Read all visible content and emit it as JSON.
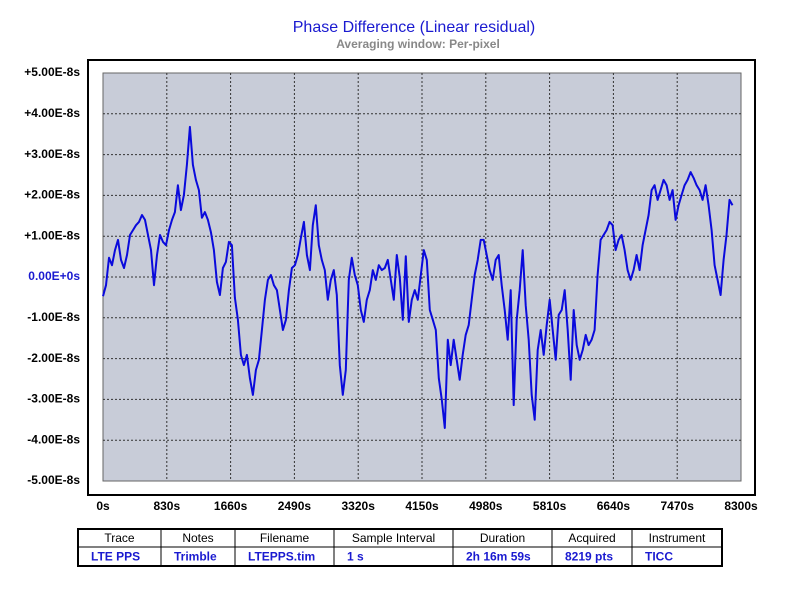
{
  "chart_data": {
    "type": "line",
    "title": "Phase Difference (Linear residual)",
    "subtitle": "Averaging window: Per-pixel",
    "color": "#0a0adc",
    "grid": true,
    "xlim": [
      0,
      8300
    ],
    "ylim": [
      -5e-08,
      5e-08
    ],
    "xticks": [
      {
        "value": 0,
        "label": "0s"
      },
      {
        "value": 830,
        "label": "830s"
      },
      {
        "value": 1660,
        "label": "1660s"
      },
      {
        "value": 2490,
        "label": "2490s"
      },
      {
        "value": 3320,
        "label": "3320s"
      },
      {
        "value": 4150,
        "label": "4150s"
      },
      {
        "value": 4980,
        "label": "4980s"
      },
      {
        "value": 5810,
        "label": "5810s"
      },
      {
        "value": 6640,
        "label": "6640s"
      },
      {
        "value": 7470,
        "label": "7470s"
      },
      {
        "value": 8300,
        "label": "8300s"
      }
    ],
    "yticks": [
      {
        "value": 5e-08,
        "label": "+5.00E-8s"
      },
      {
        "value": 4e-08,
        "label": "+4.00E-8s"
      },
      {
        "value": 3e-08,
        "label": "+3.00E-8s"
      },
      {
        "value": 2e-08,
        "label": "+2.00E-8s"
      },
      {
        "value": 1e-08,
        "label": "+1.00E-8s"
      },
      {
        "value": 0,
        "label": "0.00E+0s"
      },
      {
        "value": -1e-08,
        "label": "-1.00E-8s"
      },
      {
        "value": -2e-08,
        "label": "-2.00E-8s"
      },
      {
        "value": -3e-08,
        "label": "-3.00E-8s"
      },
      {
        "value": -4e-08,
        "label": "-4.00E-8s"
      },
      {
        "value": -5e-08,
        "label": "-5.00E-8s"
      }
    ],
    "x": [
      0,
      39,
      78,
      117,
      156,
      195,
      234,
      273,
      312,
      351,
      390,
      429,
      468,
      507,
      546,
      585,
      624,
      663,
      702,
      741,
      780,
      819,
      858,
      897,
      936,
      975,
      1014,
      1053,
      1092,
      1131,
      1170,
      1209,
      1248,
      1287,
      1326,
      1365,
      1404,
      1443,
      1482,
      1521,
      1560,
      1599,
      1638,
      1677,
      1716,
      1755,
      1794,
      1833,
      1872,
      1911,
      1950,
      1989,
      2028,
      2067,
      2106,
      2145,
      2184,
      2223,
      2262,
      2301,
      2340,
      2379,
      2418,
      2457,
      2496,
      2535,
      2574,
      2613,
      2652,
      2691,
      2730,
      2769,
      2808,
      2847,
      2886,
      2925,
      2964,
      3003,
      3042,
      3081,
      3120,
      3159,
      3198,
      3237,
      3276,
      3315,
      3354,
      3393,
      3432,
      3471,
      3510,
      3549,
      3588,
      3627,
      3666,
      3705,
      3744,
      3783,
      3822,
      3861,
      3900,
      3939,
      3978,
      4017,
      4056,
      4095,
      4134,
      4173,
      4212,
      4251,
      4290,
      4329,
      4368,
      4407,
      4446,
      4485,
      4524,
      4563,
      4602,
      4641,
      4680,
      4719,
      4758,
      4797,
      4836,
      4875,
      4914,
      4953,
      4992,
      5031,
      5070,
      5109,
      5148,
      5187,
      5226,
      5265,
      5304,
      5343,
      5382,
      5421,
      5460,
      5499,
      5538,
      5577,
      5616,
      5655,
      5694,
      5733,
      5772,
      5811,
      5850,
      5889,
      5928,
      5967,
      6006,
      6045,
      6084,
      6123,
      6162,
      6201,
      6240,
      6279,
      6318,
      6357,
      6396,
      6435,
      6474,
      6513,
      6552,
      6591,
      6630,
      6669,
      6708,
      6747,
      6786,
      6825,
      6864,
      6903,
      6942,
      6981,
      7020,
      7059,
      7098,
      7137,
      7176,
      7215,
      7254,
      7293,
      7332,
      7371,
      7410,
      7449,
      7488,
      7527,
      7566,
      7605,
      7644,
      7683,
      7722,
      7761,
      7800,
      7839,
      7878,
      7917,
      7956,
      7995,
      8034,
      8073,
      8112,
      8151,
      8190
    ],
    "values": [
      -4.7e-09,
      -2e-09,
      4.7e-09,
      2.9e-09,
      6.6e-09,
      9.1e-09,
      4.2e-09,
      2.2e-09,
      5.4e-09,
      1.03e-08,
      1.15e-08,
      1.27e-08,
      1.35e-08,
      1.52e-08,
      1.4e-08,
      1.03e-08,
      6.6e-09,
      -2e-09,
      5.4e-09,
      1.03e-08,
      8.6e-09,
      7.8e-09,
      1.15e-08,
      1.4e-08,
      1.59e-08,
      2.25e-08,
      1.64e-08,
      2.01e-08,
      2.75e-08,
      3.68e-08,
      2.75e-08,
      2.38e-08,
      2.13e-08,
      1.45e-08,
      1.59e-08,
      1.4e-08,
      1.1e-08,
      6.6e-09,
      -1.2e-09,
      -4.4e-09,
      2.2e-09,
      3.7e-09,
      8.6e-09,
      7.8e-09,
      -5.1e-09,
      -1.05e-08,
      -1.91e-08,
      -2.16e-08,
      -1.91e-08,
      -2.48e-08,
      -2.89e-08,
      -2.28e-08,
      -2.03e-08,
      -1.3e-08,
      -5.6e-09,
      -7e-10,
      5e-10,
      -2e-09,
      -3.2e-09,
      -8.1e-09,
      -1.3e-08,
      -1.05e-08,
      -3.2e-09,
      2.2e-09,
      2.9e-09,
      5.4e-09,
      9.6e-09,
      1.35e-08,
      5.4e-09,
      1.7e-09,
      1.27e-08,
      1.76e-08,
      7.8e-09,
      4.2e-09,
      1.7e-09,
      -5.6e-09,
      -7e-10,
      1.7e-09,
      -4.4e-09,
      -2.16e-08,
      -2.89e-08,
      -2.28e-08,
      -7e-10,
      4.7e-09,
      5e-10,
      -2e-09,
      -8.1e-09,
      -1.1e-08,
      -5.6e-09,
      -3.2e-09,
      1.7e-09,
      -7e-10,
      2.9e-09,
      1.7e-09,
      2.2e-09,
      4.2e-09,
      -7e-10,
      -5.6e-09,
      5.4e-09,
      -2e-10,
      -1.05e-08,
      5.1e-09,
      -1.1e-08,
      -5.6e-09,
      -3.2e-09,
      -5.6e-09,
      5e-10,
      6.6e-09,
      4.2e-09,
      -8.1e-09,
      -1.05e-08,
      -1.3e-08,
      -2.48e-08,
      -3.01e-08,
      -3.7e-08,
      -1.54e-08,
      -2.16e-08,
      -1.54e-08,
      -2.03e-08,
      -2.52e-08,
      -1.91e-08,
      -1.42e-08,
      -1.18e-08,
      -5.6e-09,
      5e-10,
      4.2e-09,
      9.1e-09,
      9.1e-09,
      5.4e-09,
      1.7e-09,
      -7e-10,
      4.2e-09,
      5.4e-09,
      -2e-09,
      -8.1e-09,
      -1.54e-08,
      -3.2e-09,
      -3.14e-08,
      -1.05e-08,
      -3.2e-09,
      6.6e-09,
      -6.9e-09,
      -1.54e-08,
      -2.89e-08,
      -3.5e-08,
      -1.79e-08,
      -1.3e-08,
      -1.91e-08,
      -1.18e-08,
      -5.6e-09,
      -1.3e-08,
      -2.03e-08,
      -9.3e-09,
      -8.1e-09,
      -3.2e-09,
      -1.3e-08,
      -2.52e-08,
      -8.1e-09,
      -1.67e-08,
      -2.03e-08,
      -1.79e-08,
      -1.42e-08,
      -1.67e-08,
      -1.54e-08,
      -1.3e-08,
      5e-10,
      9.1e-09,
      1.03e-08,
      1.15e-08,
      1.35e-08,
      1.27e-08,
      6.6e-09,
      9.1e-09,
      1.03e-08,
      6.6e-09,
      1.7e-09,
      -7e-10,
      1.7e-09,
      5.4e-09,
      1.7e-09,
      7.8e-09,
      1.15e-08,
      1.52e-08,
      2.13e-08,
      2.25e-08,
      1.89e-08,
      2.13e-08,
      2.38e-08,
      2.25e-08,
      1.89e-08,
      2.13e-08,
      1.4e-08,
      1.76e-08,
      2.01e-08,
      2.25e-08,
      2.38e-08,
      2.57e-08,
      2.43e-08,
      2.25e-08,
      2.13e-08,
      1.89e-08,
      2.25e-08,
      1.76e-08,
      1.15e-08,
      2.9e-09,
      -7e-10,
      -4.4e-09,
      4.2e-09,
      1.03e-08,
      1.89e-08,
      1.76e-08
    ]
  },
  "table": {
    "columns": [
      "Trace",
      "Notes",
      "Filename",
      "Sample Interval",
      "Duration",
      "Acquired",
      "Instrument"
    ],
    "rows": [
      [
        "LTE PPS",
        "Trimble",
        "LTEPPS.tim",
        "1 s",
        "2h 16m 59s",
        "8219 pts",
        "TICC"
      ]
    ]
  }
}
